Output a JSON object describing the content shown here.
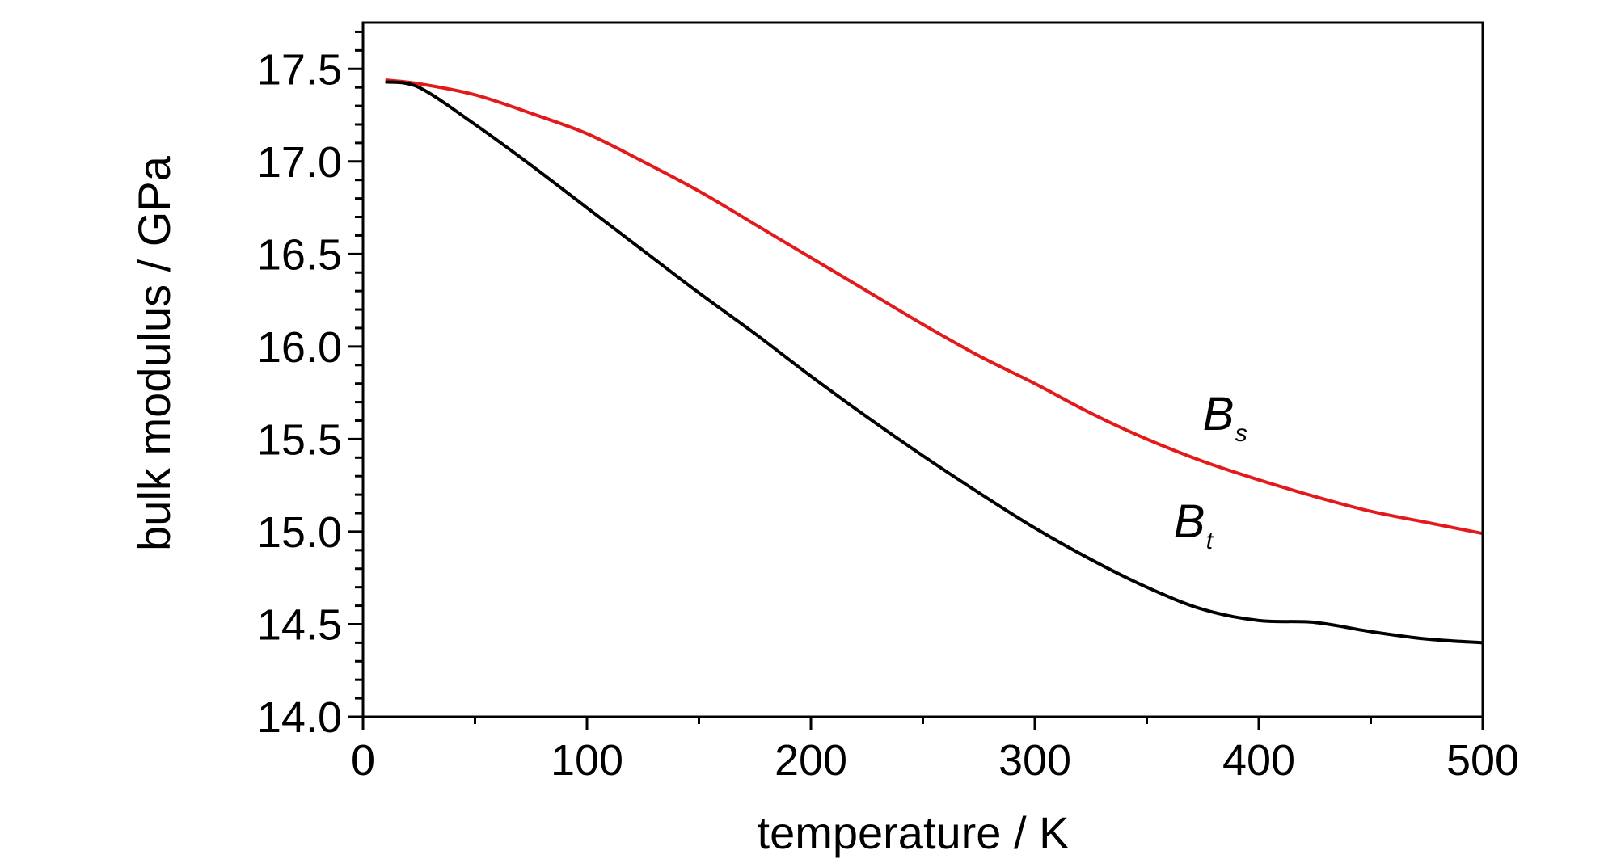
{
  "chart_data": {
    "type": "line",
    "title": "",
    "xlabel": "temperature / K",
    "ylabel": "bulk modulus / GPa",
    "xlim": [
      0,
      500
    ],
    "ylim": [
      14.0,
      17.75
    ],
    "xticks": [
      0,
      100,
      200,
      300,
      400,
      500
    ],
    "xtick_labels": [
      "0",
      "100",
      "200",
      "300",
      "400",
      "500"
    ],
    "yticks": [
      14.0,
      14.5,
      15.0,
      15.5,
      16.0,
      16.5,
      17.0,
      17.5
    ],
    "ytick_labels": [
      "14.0",
      "14.5",
      "15.0",
      "15.5",
      "16.0",
      "16.5",
      "17.0",
      "17.5"
    ],
    "grid": false,
    "legend": "none",
    "series": [
      {
        "name": "Bs",
        "label_main": "B",
        "label_sub": "s",
        "label_position": [
          375,
          15.55
        ],
        "color": "#e31a1c",
        "x": [
          10,
          25,
          50,
          75,
          100,
          125,
          150,
          175,
          200,
          225,
          250,
          275,
          300,
          325,
          350,
          375,
          400,
          425,
          450,
          475,
          500
        ],
        "y": [
          17.44,
          17.42,
          17.36,
          17.26,
          17.15,
          17.0,
          16.84,
          16.66,
          16.48,
          16.3,
          16.12,
          15.95,
          15.8,
          15.64,
          15.5,
          15.38,
          15.28,
          15.19,
          15.11,
          15.05,
          14.99
        ]
      },
      {
        "name": "Bt",
        "label_main": "B",
        "label_sub": "t",
        "label_position": [
          362,
          14.97
        ],
        "color": "#000000",
        "x": [
          10,
          25,
          50,
          75,
          100,
          125,
          150,
          175,
          200,
          225,
          250,
          275,
          300,
          325,
          350,
          375,
          400,
          425,
          450,
          475,
          500
        ],
        "y": [
          17.43,
          17.4,
          17.2,
          16.98,
          16.75,
          16.52,
          16.29,
          16.07,
          15.84,
          15.62,
          15.41,
          15.21,
          15.02,
          14.85,
          14.7,
          14.58,
          14.52,
          14.51,
          14.46,
          14.42,
          14.4
        ]
      }
    ]
  }
}
